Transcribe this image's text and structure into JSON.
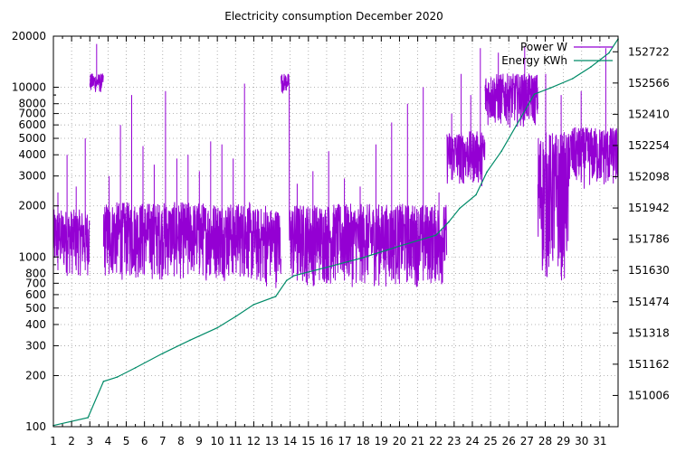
{
  "chart_data": {
    "type": "line",
    "title": "Electricity consumption December 2020",
    "xlabel": "",
    "ylabel": "",
    "x_ticks": [
      "1",
      "2",
      "3",
      "4",
      "5",
      "6",
      "7",
      "8",
      "9",
      "10",
      "11",
      "12",
      "13",
      "14",
      "15",
      "16",
      "17",
      "18",
      "19",
      "20",
      "21",
      "22",
      "23",
      "24",
      "25",
      "26",
      "27",
      "28",
      "29",
      "30",
      "31"
    ],
    "xlim": [
      1,
      32
    ],
    "y_scale": "log",
    "ylim": [
      100,
      20000
    ],
    "y_ticks": [
      100,
      200,
      300,
      400,
      500,
      600,
      700,
      800,
      1000,
      2000,
      3000,
      4000,
      5000,
      6000,
      7000,
      8000,
      10000,
      20000
    ],
    "y2_scale": "linear",
    "y2lim": [
      150850,
      152800
    ],
    "y2_ticks": [
      151006,
      151162,
      151318,
      151474,
      151630,
      151786,
      151942,
      152098,
      152254,
      152410,
      152566,
      152722
    ],
    "grid": true,
    "legend_position": "top-right",
    "series": [
      {
        "name": "Power W",
        "axis": "y",
        "color": "#9400d3",
        "style": "dense-fluctuating",
        "segments": [
          {
            "from": 1.0,
            "to": 3.0,
            "low": 760,
            "high": 1900,
            "spikes": [
              2400,
              4000,
              2600,
              5000
            ]
          },
          {
            "from": 3.0,
            "to": 3.75,
            "low": 9200,
            "high": 12000,
            "spikes": [
              18000
            ]
          },
          {
            "from": 3.75,
            "to": 11.8,
            "low": 720,
            "high": 2100,
            "spikes": [
              3000,
              6000,
              9000,
              4500,
              3500,
              9500,
              3800,
              4000,
              3200,
              4800,
              4600,
              3800,
              10500
            ]
          },
          {
            "from": 11.8,
            "to": 13.5,
            "low": 650,
            "high": 1950,
            "spikes": [
              2000
            ]
          },
          {
            "from": 13.5,
            "to": 13.95,
            "low": 9200,
            "high": 12000,
            "spikes": []
          },
          {
            "from": 13.95,
            "to": 22.6,
            "low": 660,
            "high": 2050,
            "spikes": [
              2700,
              3200,
              4200,
              2900,
              2600,
              4600,
              6200,
              8000,
              10000,
              2400
            ]
          },
          {
            "from": 22.6,
            "to": 24.7,
            "low": 2600,
            "high": 5500,
            "spikes": [
              7000,
              12000,
              9000,
              17000
            ]
          },
          {
            "from": 24.7,
            "to": 27.6,
            "low": 5800,
            "high": 12000,
            "spikes": [
              16000,
              17500
            ]
          },
          {
            "from": 27.6,
            "to": 29.3,
            "low": 700,
            "high": 5500,
            "spikes": [
              12000,
              9000
            ]
          },
          {
            "from": 29.3,
            "to": 32.0,
            "low": 2500,
            "high": 5800,
            "spikes": [
              9500,
              17000
            ]
          }
        ]
      },
      {
        "name": "Energy KWh",
        "axis": "y2",
        "color": "#008b68",
        "x": [
          1,
          2.9,
          3.75,
          4.5,
          5.5,
          7,
          8.5,
          10,
          11,
          12,
          13.2,
          13.8,
          14.2,
          16,
          18,
          20,
          22,
          22.7,
          23.3,
          24.2,
          24.8,
          25.6,
          26.4,
          27.4,
          28.3,
          29.5,
          30.5,
          31.5,
          32
        ],
        "y": [
          150856,
          150895,
          151076,
          151098,
          151144,
          151216,
          151282,
          151344,
          151400,
          151460,
          151500,
          151580,
          151604,
          151646,
          151694,
          151752,
          151806,
          151872,
          151940,
          152008,
          152122,
          152226,
          152352,
          152510,
          152542,
          152588,
          152646,
          152716,
          152786
        ]
      }
    ]
  }
}
